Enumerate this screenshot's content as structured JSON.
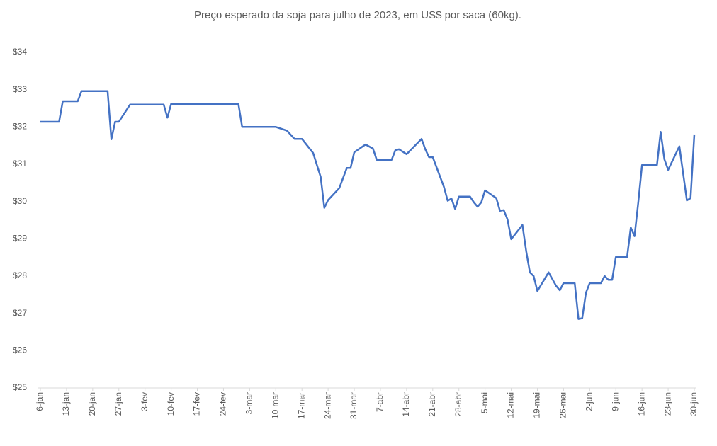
{
  "chart_data": {
    "type": "line",
    "title": "Preço esperado da soja para julho de 2023, em US$ por saca (60kg).",
    "series": [
      {
        "color": "#4472c4",
        "x": [
          0,
          5,
          6,
          10,
          11,
          18,
          19,
          20,
          21,
          24,
          33,
          34,
          35,
          53,
          54,
          63,
          66,
          68,
          70,
          73,
          75,
          76,
          77,
          80,
          82,
          83,
          84,
          87,
          89,
          90,
          94,
          95,
          96,
          98,
          102,
          103,
          104,
          105,
          108,
          109,
          110,
          111,
          112,
          115,
          116,
          117,
          118,
          119,
          122,
          123,
          124,
          125,
          126,
          129,
          130,
          131,
          132,
          133,
          136,
          138,
          139,
          140,
          143,
          144,
          145,
          146,
          147,
          150,
          151,
          152,
          153,
          154,
          157,
          158,
          159,
          160,
          161,
          165,
          166,
          167,
          168,
          171,
          173,
          174,
          175
        ],
        "values": [
          32.14,
          32.14,
          32.69,
          32.69,
          32.96,
          32.96,
          31.67,
          32.14,
          32.14,
          32.6,
          32.6,
          32.25,
          32.62,
          32.62,
          32.0,
          32.0,
          31.9,
          31.68,
          31.68,
          31.3,
          30.66,
          29.83,
          30.04,
          30.36,
          30.9,
          30.9,
          31.32,
          31.53,
          31.42,
          31.12,
          31.12,
          31.38,
          31.4,
          31.27,
          31.68,
          31.4,
          31.19,
          31.19,
          30.39,
          30.02,
          30.08,
          29.8,
          30.13,
          30.13,
          29.98,
          29.86,
          29.98,
          30.3,
          30.09,
          29.75,
          29.77,
          29.52,
          28.99,
          29.37,
          28.67,
          28.1,
          28.0,
          27.6,
          28.1,
          27.74,
          27.62,
          27.81,
          27.81,
          26.85,
          26.87,
          27.55,
          27.81,
          27.81,
          28.0,
          27.9,
          27.9,
          28.51,
          28.51,
          29.3,
          29.07,
          29.98,
          30.98,
          30.98,
          31.87,
          31.13,
          30.85,
          31.48,
          30.03,
          30.09,
          31.8
        ]
      }
    ],
    "xlim": [
      0,
      175
    ],
    "xticks": [
      {
        "value": 0,
        "label": "6-jan"
      },
      {
        "value": 7,
        "label": "13-jan"
      },
      {
        "value": 14,
        "label": "20-jan"
      },
      {
        "value": 21,
        "label": "27-jan"
      },
      {
        "value": 28,
        "label": "3-fev"
      },
      {
        "value": 35,
        "label": "10-fev"
      },
      {
        "value": 42,
        "label": "17-fev"
      },
      {
        "value": 49,
        "label": "24-fev"
      },
      {
        "value": 56,
        "label": "3-mar"
      },
      {
        "value": 63,
        "label": "10-mar"
      },
      {
        "value": 70,
        "label": "17-mar"
      },
      {
        "value": 77,
        "label": "24-mar"
      },
      {
        "value": 84,
        "label": "31-mar"
      },
      {
        "value": 91,
        "label": "7-abr"
      },
      {
        "value": 98,
        "label": "14-abr"
      },
      {
        "value": 105,
        "label": "21-abr"
      },
      {
        "value": 112,
        "label": "28-abr"
      },
      {
        "value": 119,
        "label": "5-mai"
      },
      {
        "value": 126,
        "label": "12-mai"
      },
      {
        "value": 133,
        "label": "19-mai"
      },
      {
        "value": 140,
        "label": "26-mai"
      },
      {
        "value": 147,
        "label": "2-jun"
      },
      {
        "value": 154,
        "label": "9-jun"
      },
      {
        "value": 161,
        "label": "16-jun"
      },
      {
        "value": 168,
        "label": "23-jun"
      },
      {
        "value": 175,
        "label": "30-jun"
      }
    ],
    "ylim": [
      25,
      34
    ],
    "yticks": [
      {
        "value": 25,
        "label": "$25"
      },
      {
        "value": 26,
        "label": "$26"
      },
      {
        "value": 27,
        "label": "$27"
      },
      {
        "value": 28,
        "label": "$28"
      },
      {
        "value": 29,
        "label": "$29"
      },
      {
        "value": 30,
        "label": "$30"
      },
      {
        "value": 31,
        "label": "$31"
      },
      {
        "value": 32,
        "label": "$32"
      },
      {
        "value": 33,
        "label": "$33"
      },
      {
        "value": 34,
        "label": "$34"
      }
    ],
    "grid": false
  }
}
